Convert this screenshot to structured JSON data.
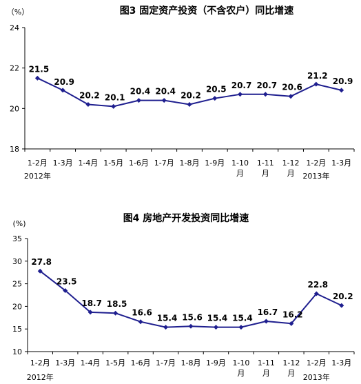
{
  "chart_data": [
    {
      "type": "line",
      "title": "图3 固定资产投资（不含农户）同比增速",
      "unit_label": "（%）",
      "categories": [
        "1-2月",
        "1-3月",
        "1-4月",
        "1-5月",
        "1-6月",
        "1-7月",
        "1-8月",
        "1-9月",
        "1-10月",
        "1-11月",
        "1-12月",
        "1-2月",
        "1-3月"
      ],
      "year_labels": [
        {
          "category_index": 0,
          "text": "2012年"
        },
        {
          "category_index": 11,
          "text": "2013年"
        }
      ],
      "series": [
        {
          "values": [
            21.5,
            20.9,
            20.2,
            20.1,
            20.4,
            20.4,
            20.2,
            20.5,
            20.7,
            20.7,
            20.6,
            21.2,
            20.9
          ]
        }
      ],
      "data_labels": [
        "21.5",
        "20.9",
        "20.2",
        "20.1",
        "20.4",
        "20.4",
        "20.2",
        "20.5",
        "20.7",
        "20.7",
        "20.6",
        "21.2",
        "20.9"
      ],
      "ylim": [
        18,
        24
      ],
      "yticks": [
        18,
        20,
        22,
        24
      ],
      "grid": false,
      "line_color": "#1f1f8f",
      "marker": "diamond"
    },
    {
      "type": "line",
      "title": "图4 房地产开发投资同比增速",
      "unit_label": "(%)",
      "categories": [
        "1-2月",
        "1-3月",
        "1-4月",
        "1-5月",
        "1-6月",
        "1-7月",
        "1-8月",
        "1-9月",
        "1-10月",
        "1-11月",
        "1-12月",
        "1-2月",
        "1-3月"
      ],
      "year_labels": [
        {
          "category_index": 0,
          "text": "2012年"
        },
        {
          "category_index": 11,
          "text": "2013年"
        }
      ],
      "series": [
        {
          "values": [
            27.8,
            23.5,
            18.7,
            18.5,
            16.6,
            15.4,
            15.6,
            15.4,
            15.4,
            16.7,
            16.2,
            22.8,
            20.2
          ]
        }
      ],
      "data_labels": [
        "27.8",
        "23.5",
        "18.7",
        "18.5",
        "16.6",
        "15.4",
        "15.6",
        "15.4",
        "15.4",
        "16.7",
        "16.2",
        "22.8",
        "20.2"
      ],
      "ylim": [
        10,
        35
      ],
      "yticks": [
        10,
        15,
        20,
        25,
        30,
        35
      ],
      "grid": false,
      "line_color": "#1f1f8f",
      "marker": "diamond"
    }
  ]
}
